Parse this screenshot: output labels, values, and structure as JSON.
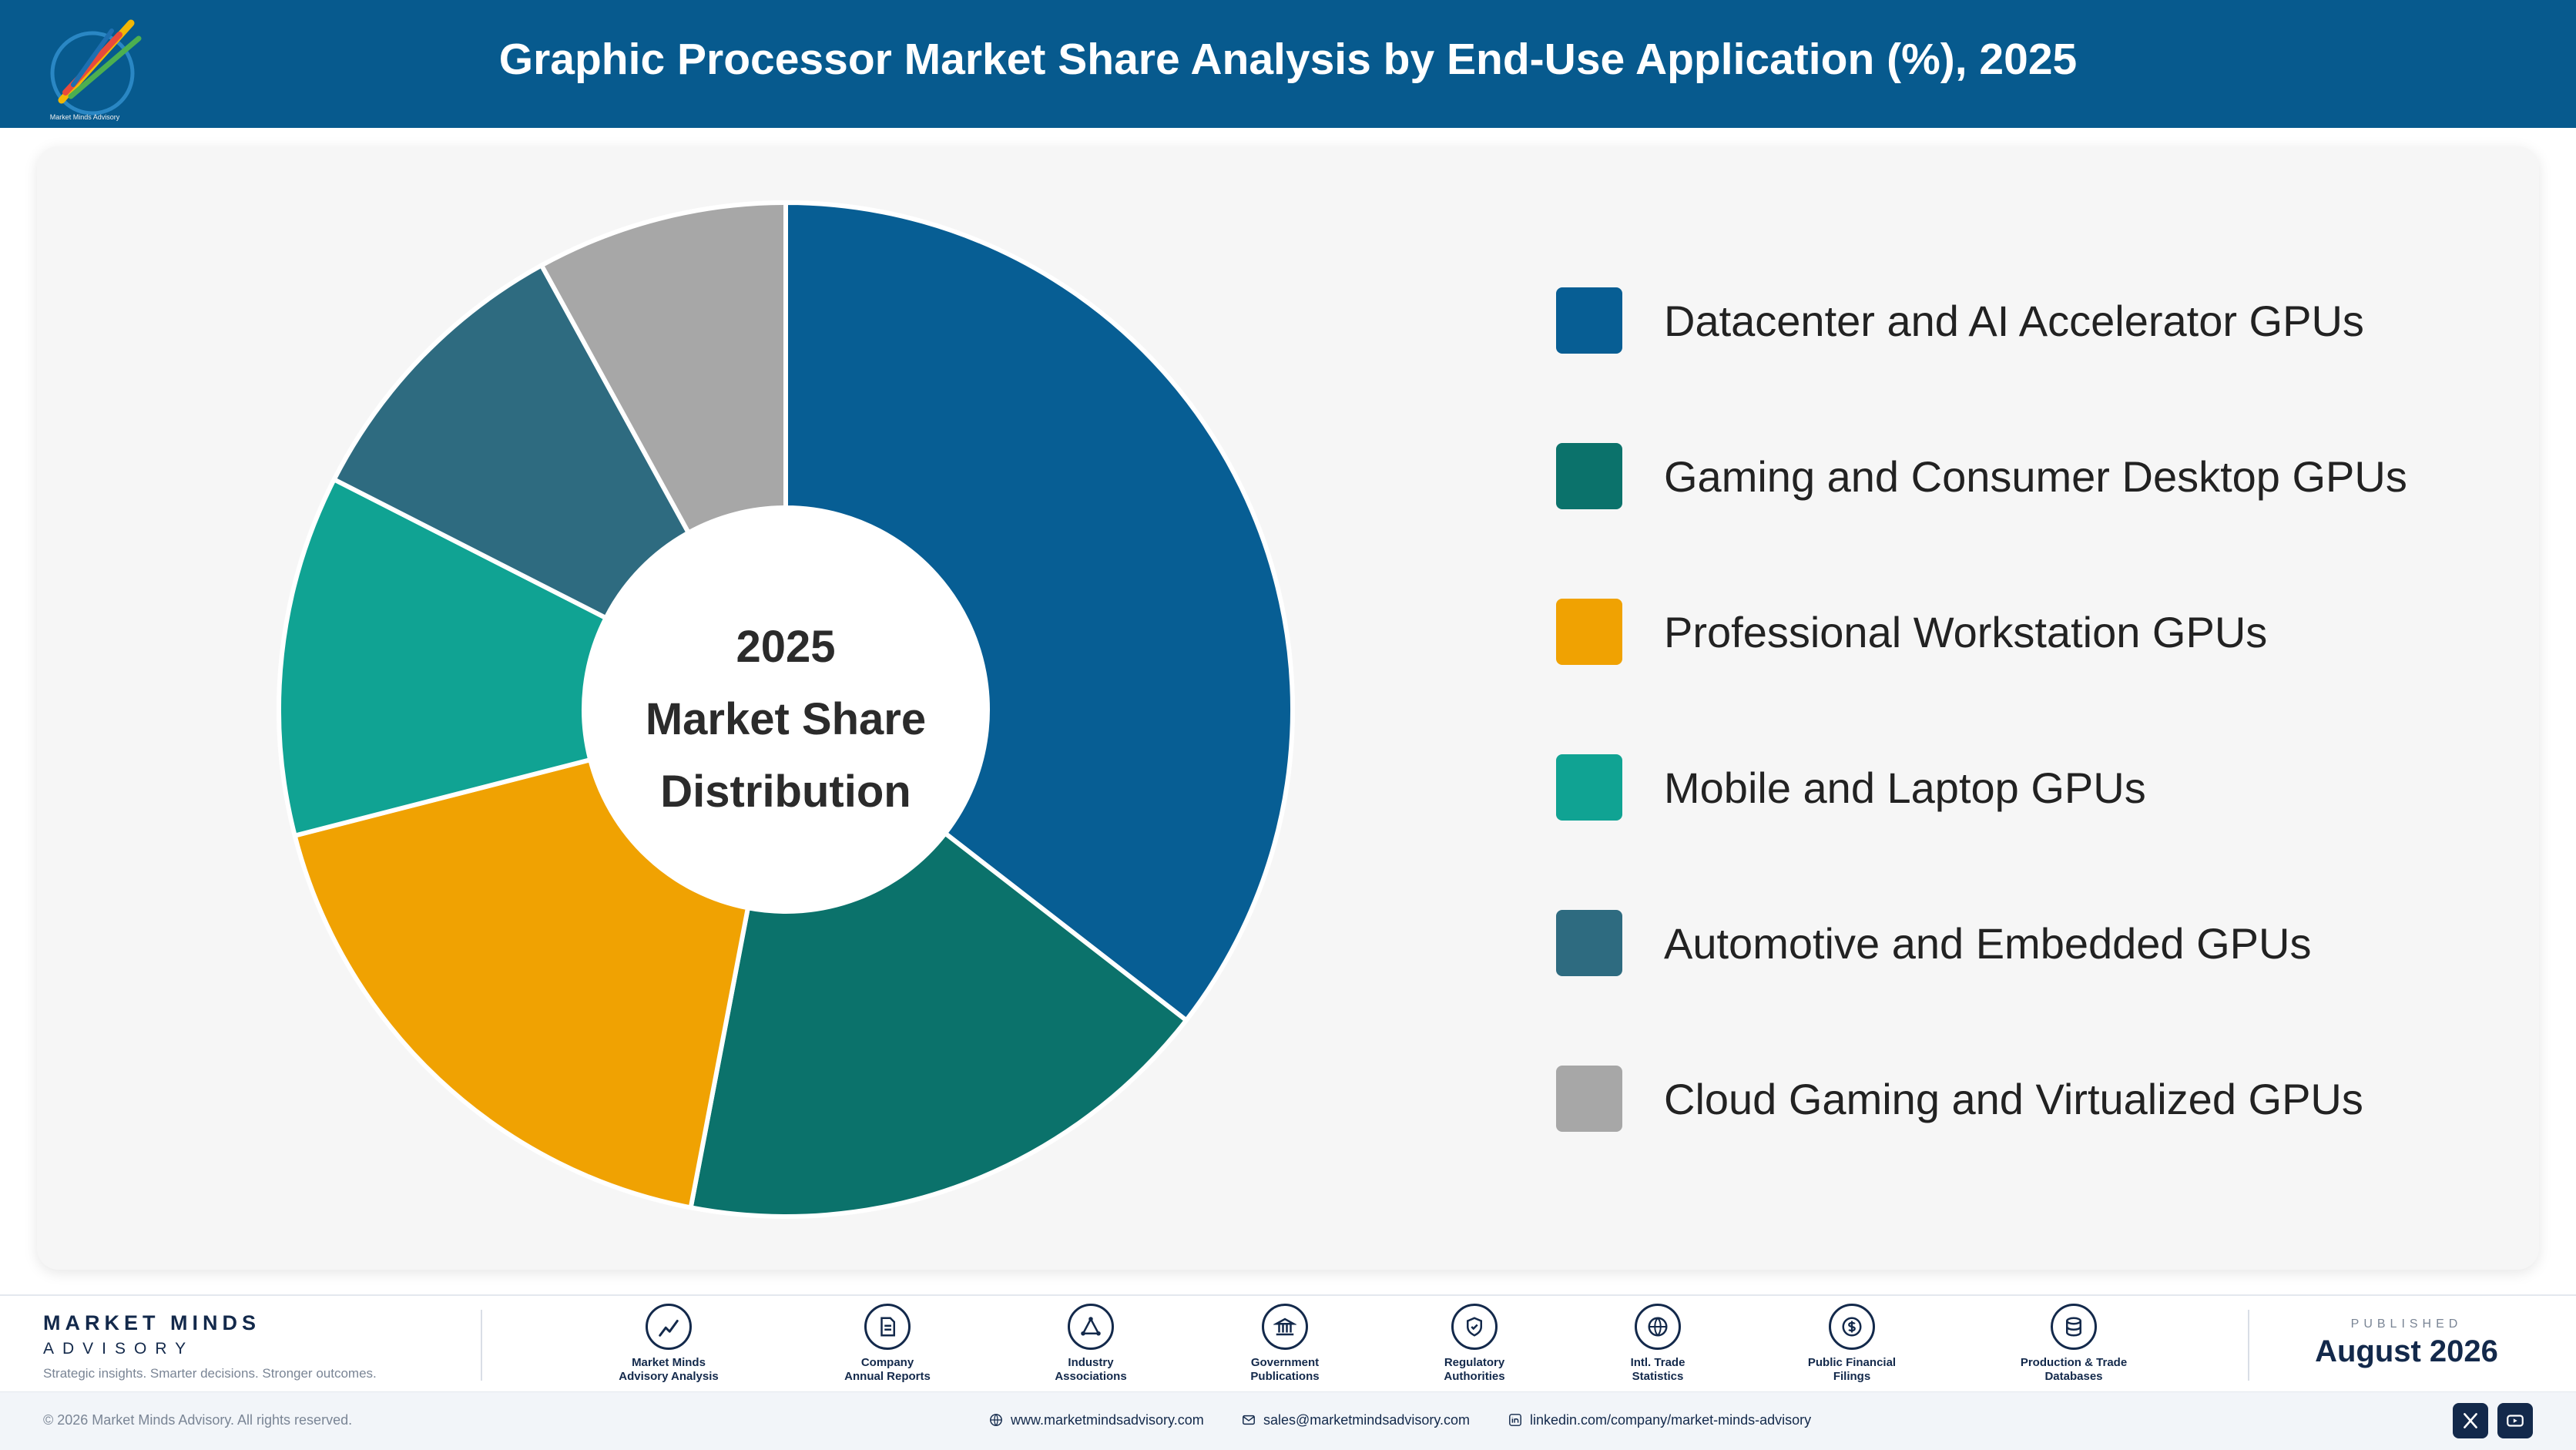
{
  "header": {
    "title": "Graphic Processor Market Share Analysis by End-Use Application (%), 2025",
    "logo_caption": "Market Minds Advisory"
  },
  "chart_data": {
    "type": "pie",
    "title": "Graphic Processor Market Share Analysis by End-Use Application (%), 2025",
    "center_label": [
      "2025",
      "Market Share",
      "Distribution"
    ],
    "categories": [
      "Datacenter and AI Accelerator GPUs",
      "Gaming and Consumer Desktop GPUs",
      "Professional Workstation GPUs",
      "Mobile and Laptop GPUs",
      "Automotive and Embedded GPUs",
      "Cloud Gaming and Virtualized GPUs"
    ],
    "values": [
      35.5,
      17.5,
      18.0,
      11.5,
      9.5,
      8.0
    ],
    "colors": [
      "#075e94",
      "#0b726b",
      "#f0a202",
      "#10a393",
      "#2e6b80",
      "#a7a7a7"
    ],
    "legend_position": "right"
  },
  "footer": {
    "brand_name": "MARKET MINDS",
    "brand_sub": "ADVISORY",
    "tagline": "Strategic insights. Smarter decisions. Stronger outcomes.",
    "sources": [
      {
        "label": "Market Minds\nAdvisory Analysis",
        "icon": "chart-line-icon"
      },
      {
        "label": "Company\nAnnual Reports",
        "icon": "document-icon"
      },
      {
        "label": "Industry\nAssociations",
        "icon": "network-icon"
      },
      {
        "label": "Government\nPublications",
        "icon": "bank-icon"
      },
      {
        "label": "Regulatory\nAuthorities",
        "icon": "shield-icon"
      },
      {
        "label": "Intl. Trade\nStatistics",
        "icon": "globe-icon"
      },
      {
        "label": "Public Financial\nFilings",
        "icon": "dollar-icon"
      },
      {
        "label": "Production & Trade\nDatabases",
        "icon": "database-icon"
      }
    ],
    "published_label": "PUBLISHED",
    "published_date": "August 2026",
    "copyright": "© 2026 Market Minds Advisory. All rights reserved.",
    "website": "www.marketmindsadvisory.com",
    "email": "sales@marketmindsadvisory.com",
    "linkedin": "linkedin.com/company/market-minds-advisory",
    "social": [
      "x-icon",
      "youtube-icon"
    ]
  }
}
